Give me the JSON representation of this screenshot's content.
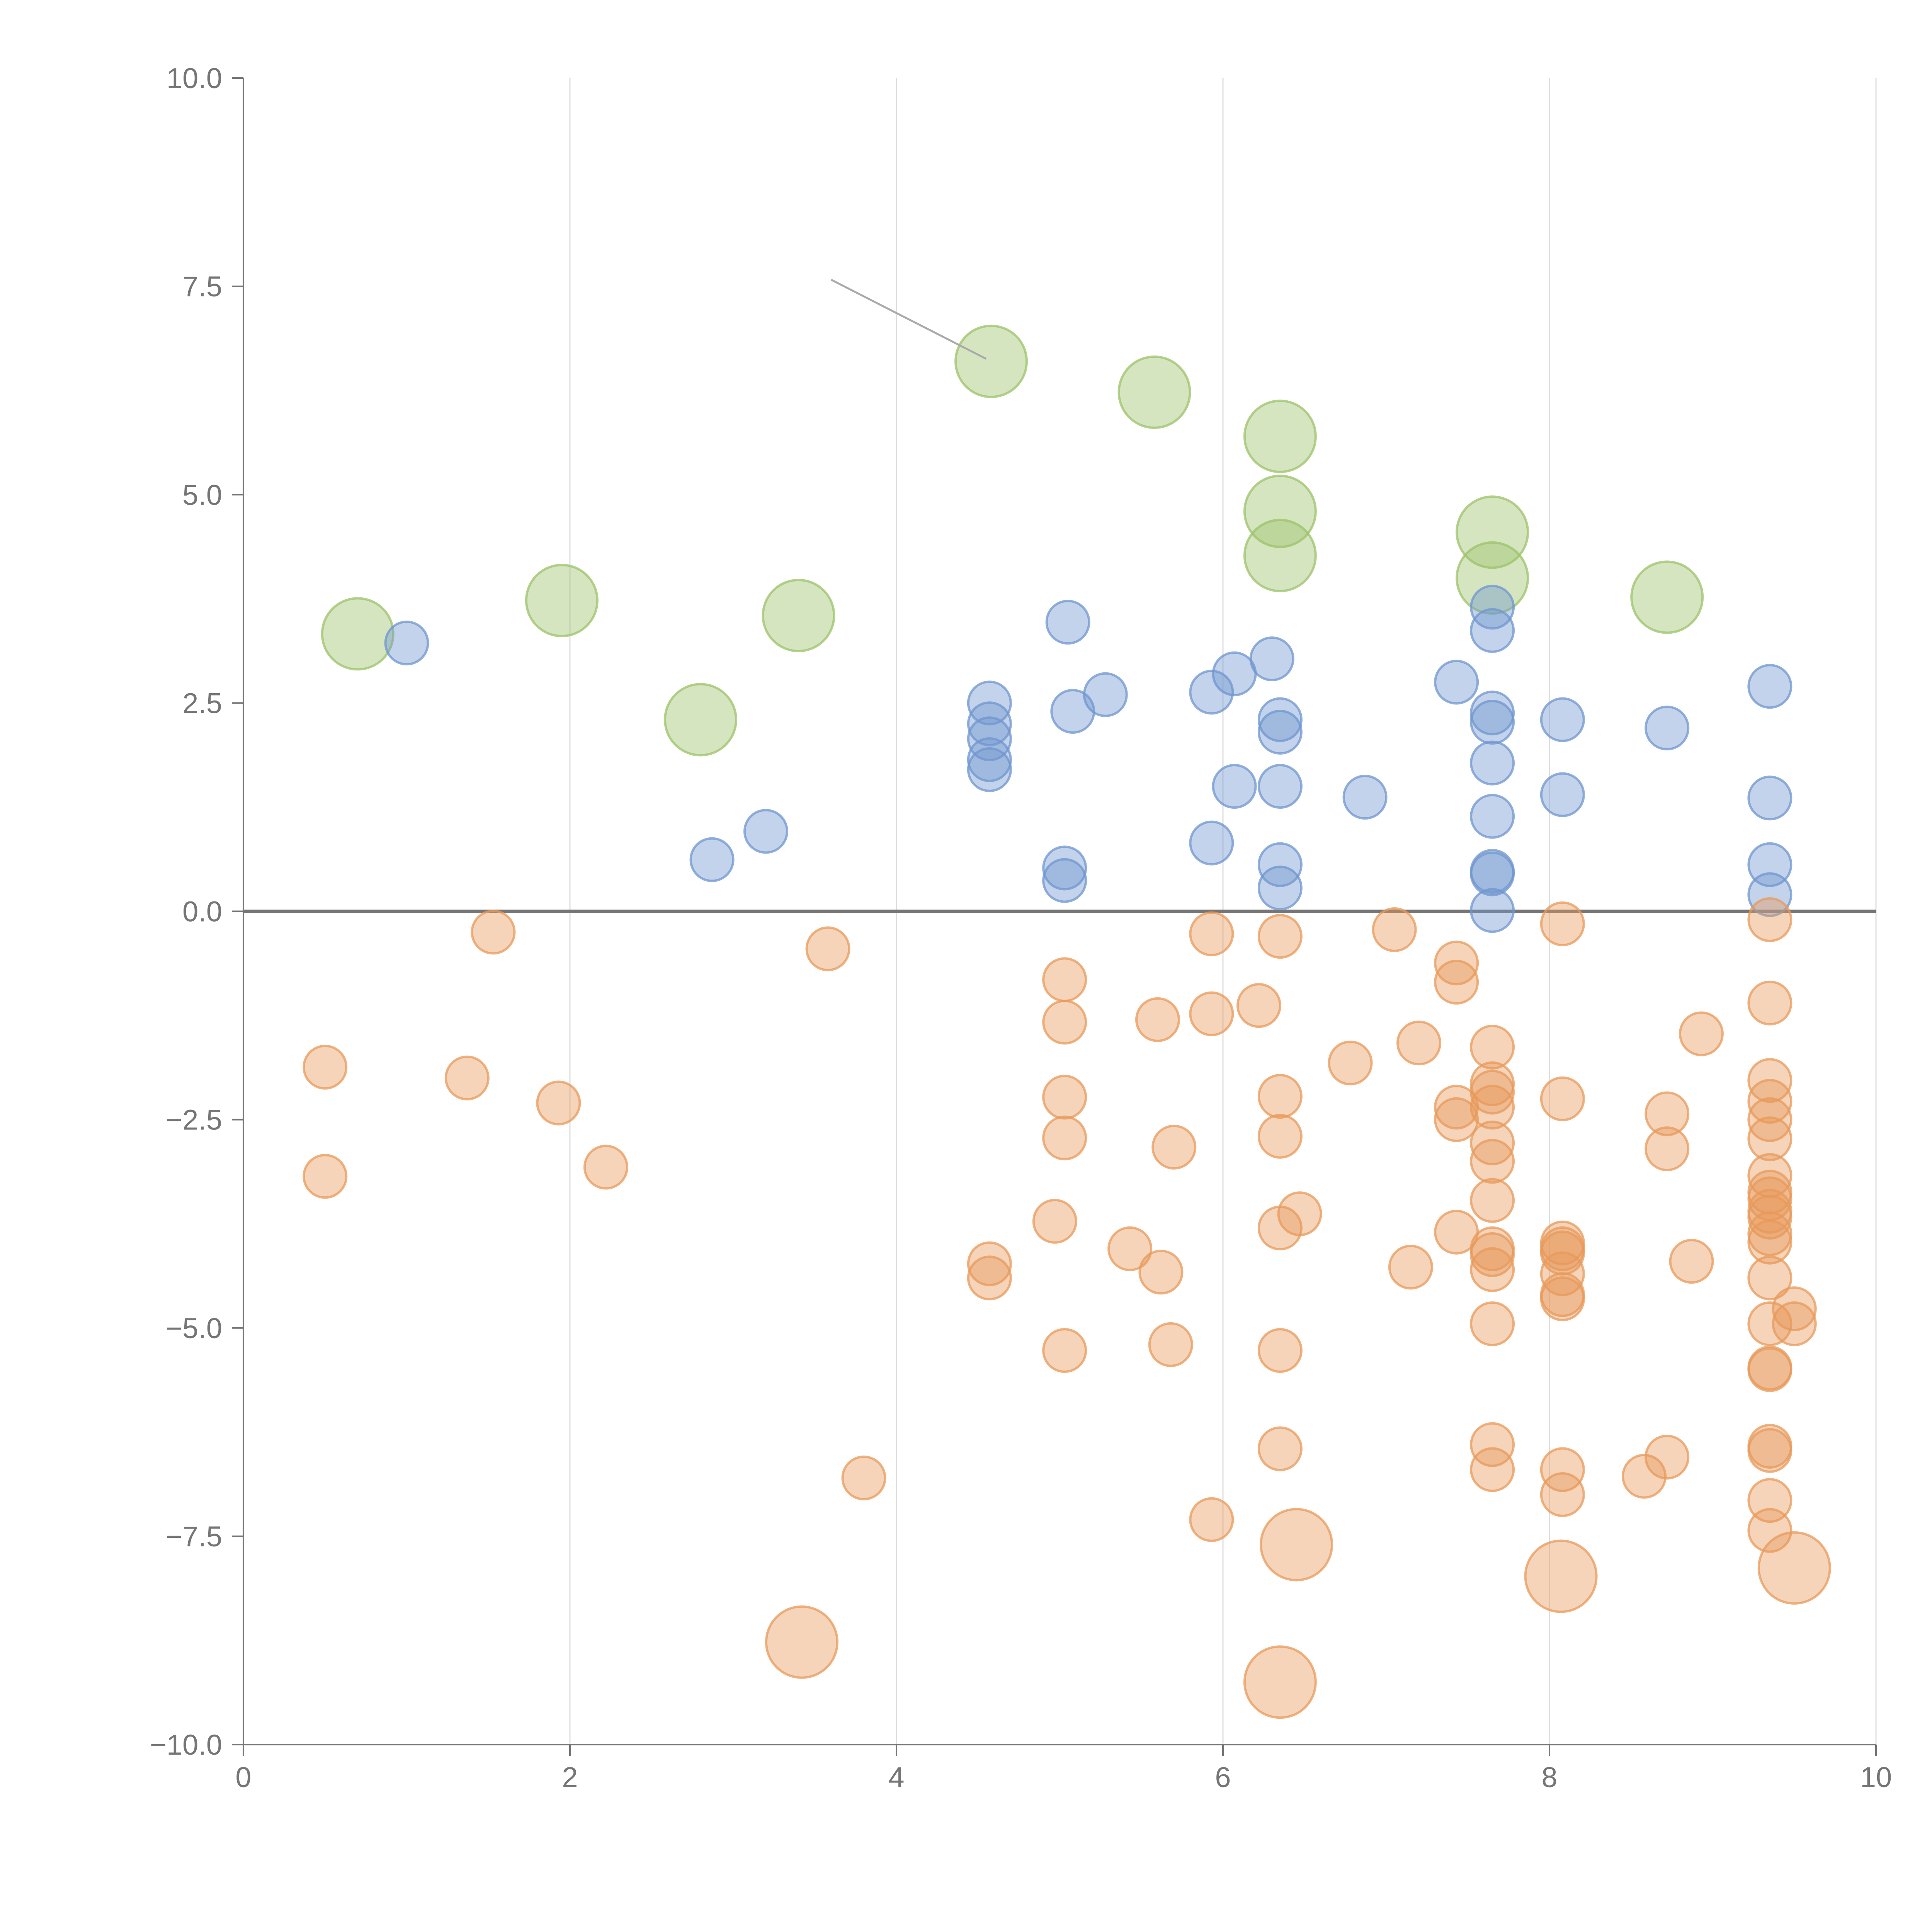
{
  "chart_data": {
    "type": "scatter",
    "title": "",
    "xlabel": "",
    "ylabel": "",
    "xlim": [
      0,
      10
    ],
    "ylim": [
      -10,
      10
    ],
    "x_ticks": [
      0,
      2,
      4,
      6,
      8,
      10
    ],
    "y_ticks": [
      -10,
      -7.5,
      -5,
      -2.5,
      0,
      2.5,
      5,
      7.5,
      10
    ],
    "x_tick_labels": [
      "0",
      "2",
      "4",
      "6",
      "8",
      "10"
    ],
    "y_tick_labels": [
      "−10.0",
      "−7.5",
      "−5.0",
      "−2.5",
      "0.0",
      "2.5",
      "5.0",
      "7.5",
      "10.0"
    ],
    "vertical_grid": true,
    "zero_line": true,
    "colors": {
      "green": "#9cc26a",
      "blue": "#6f96cf",
      "orange": "#e8995a",
      "grid": "#dcdcdc",
      "axis": "#757575",
      "zero_line": "#757575"
    },
    "series": [
      {
        "name": "green",
        "color": "#9cc26a",
        "size": "large",
        "points": [
          [
            0.7,
            3.33
          ],
          [
            1.95,
            3.73
          ],
          [
            2.8,
            2.3
          ],
          [
            3.4,
            3.55
          ],
          [
            4.58,
            6.6
          ],
          [
            5.58,
            6.23
          ],
          [
            6.35,
            5.7
          ],
          [
            6.35,
            4.8
          ],
          [
            6.35,
            4.27
          ],
          [
            7.65,
            4.55
          ],
          [
            7.65,
            4.0
          ],
          [
            8.72,
            3.77
          ]
        ]
      },
      {
        "name": "blue",
        "color": "#6f96cf",
        "size": "small",
        "points": [
          [
            1.0,
            3.22
          ],
          [
            2.87,
            0.62
          ],
          [
            3.2,
            0.96
          ],
          [
            4.57,
            2.5
          ],
          [
            4.57,
            2.25
          ],
          [
            4.57,
            2.07
          ],
          [
            4.57,
            1.82
          ],
          [
            4.57,
            1.7
          ],
          [
            5.03,
            0.52
          ],
          [
            5.03,
            0.37
          ],
          [
            5.05,
            3.47
          ],
          [
            5.08,
            2.4
          ],
          [
            5.28,
            2.6
          ],
          [
            5.93,
            2.63
          ],
          [
            5.93,
            0.82
          ],
          [
            6.07,
            2.85
          ],
          [
            6.07,
            1.5
          ],
          [
            6.3,
            3.03
          ],
          [
            6.35,
            2.3
          ],
          [
            6.35,
            2.15
          ],
          [
            6.35,
            1.5
          ],
          [
            6.35,
            0.56
          ],
          [
            6.35,
            0.28
          ],
          [
            6.87,
            1.37
          ],
          [
            7.43,
            2.75
          ],
          [
            7.65,
            3.65
          ],
          [
            7.65,
            3.37
          ],
          [
            7.65,
            2.38
          ],
          [
            7.65,
            2.27
          ],
          [
            7.65,
            1.78
          ],
          [
            7.65,
            1.14
          ],
          [
            7.65,
            0.48
          ],
          [
            7.65,
            0.45
          ],
          [
            7.65,
            0.01
          ],
          [
            8.08,
            2.3
          ],
          [
            8.08,
            1.4
          ],
          [
            8.72,
            2.2
          ],
          [
            9.35,
            2.7
          ],
          [
            9.35,
            1.36
          ],
          [
            9.35,
            0.56
          ],
          [
            9.35,
            0.2
          ]
        ]
      },
      {
        "name": "orange",
        "color": "#e8995a",
        "size": "mixed",
        "points": [
          [
            0.5,
            -1.87,
            0
          ],
          [
            0.5,
            -3.18,
            0
          ],
          [
            1.37,
            -2.0,
            0
          ],
          [
            1.53,
            -0.25,
            0
          ],
          [
            1.93,
            -2.3,
            0
          ],
          [
            2.22,
            -3.07,
            0
          ],
          [
            3.42,
            -8.77,
            1
          ],
          [
            3.58,
            -0.45,
            0
          ],
          [
            3.8,
            -6.8,
            0
          ],
          [
            4.57,
            -4.23,
            0
          ],
          [
            4.57,
            -4.4,
            0
          ],
          [
            4.97,
            -3.72,
            0
          ],
          [
            5.03,
            -0.82,
            0
          ],
          [
            5.03,
            -1.33,
            0
          ],
          [
            5.03,
            -2.23,
            0
          ],
          [
            5.03,
            -2.72,
            0
          ],
          [
            5.03,
            -5.27,
            0
          ],
          [
            5.43,
            -4.05,
            0
          ],
          [
            5.6,
            -1.3,
            0
          ],
          [
            5.62,
            -4.33,
            0
          ],
          [
            5.68,
            -5.2,
            0
          ],
          [
            5.7,
            -2.83,
            0
          ],
          [
            5.93,
            -0.27,
            0
          ],
          [
            5.93,
            -1.23,
            0
          ],
          [
            5.93,
            -7.3,
            0
          ],
          [
            6.22,
            -1.13,
            0
          ],
          [
            6.35,
            -0.3,
            0
          ],
          [
            6.35,
            -2.22,
            0
          ],
          [
            6.35,
            -2.7,
            0
          ],
          [
            6.35,
            -3.8,
            0
          ],
          [
            6.35,
            -5.27,
            0
          ],
          [
            6.35,
            -6.45,
            0
          ],
          [
            6.35,
            -9.25,
            1
          ],
          [
            6.47,
            -3.63,
            0
          ],
          [
            6.45,
            -7.6,
            1
          ],
          [
            6.78,
            -1.82,
            0
          ],
          [
            7.05,
            -0.22,
            0
          ],
          [
            7.15,
            -4.27,
            0
          ],
          [
            7.2,
            -1.58,
            0
          ],
          [
            7.43,
            -0.62,
            0
          ],
          [
            7.43,
            -0.85,
            0
          ],
          [
            7.43,
            -2.35,
            0
          ],
          [
            7.43,
            -2.5,
            0
          ],
          [
            7.43,
            -3.85,
            0
          ],
          [
            7.65,
            -1.63,
            0
          ],
          [
            7.65,
            -2.07,
            0
          ],
          [
            7.65,
            -2.17,
            0
          ],
          [
            7.65,
            -2.35,
            0
          ],
          [
            7.65,
            -2.78,
            0
          ],
          [
            7.65,
            -3.0,
            0
          ],
          [
            7.65,
            -3.47,
            0
          ],
          [
            7.65,
            -4.05,
            0
          ],
          [
            7.65,
            -4.12,
            0
          ],
          [
            7.65,
            -4.3,
            0
          ],
          [
            7.65,
            -4.95,
            0
          ],
          [
            7.65,
            -6.4,
            0
          ],
          [
            7.65,
            -6.7,
            0
          ],
          [
            8.08,
            -0.15,
            0
          ],
          [
            8.08,
            -2.25,
            0
          ],
          [
            8.08,
            -3.98,
            0
          ],
          [
            8.08,
            -4.05,
            0
          ],
          [
            8.08,
            -4.1,
            0
          ],
          [
            8.08,
            -4.35,
            0
          ],
          [
            8.08,
            -4.6,
            0
          ],
          [
            8.08,
            -4.65,
            0
          ],
          [
            8.08,
            -6.7,
            0
          ],
          [
            8.08,
            -7.0,
            0
          ],
          [
            8.07,
            -7.98,
            1
          ],
          [
            8.58,
            -6.78,
            0
          ],
          [
            8.72,
            -2.43,
            0
          ],
          [
            8.72,
            -2.85,
            0
          ],
          [
            8.72,
            -6.55,
            0
          ],
          [
            8.87,
            -4.2,
            0
          ],
          [
            8.93,
            -1.47,
            0
          ],
          [
            9.35,
            -0.1,
            0
          ],
          [
            9.35,
            -1.1,
            0
          ],
          [
            9.35,
            -2.03,
            0
          ],
          [
            9.35,
            -2.28,
            0
          ],
          [
            9.35,
            -2.5,
            0
          ],
          [
            9.35,
            -2.73,
            0
          ],
          [
            9.35,
            -3.17,
            0
          ],
          [
            9.35,
            -3.37,
            0
          ],
          [
            9.35,
            -3.45,
            0
          ],
          [
            9.35,
            -3.6,
            0
          ],
          [
            9.35,
            -3.67,
            0
          ],
          [
            9.35,
            -3.87,
            0
          ],
          [
            9.35,
            -3.97,
            0
          ],
          [
            9.35,
            -4.4,
            0
          ],
          [
            9.35,
            -4.95,
            0
          ],
          [
            9.35,
            -5.48,
            0
          ],
          [
            9.35,
            -5.5,
            0
          ],
          [
            9.35,
            -6.42,
            0
          ],
          [
            9.35,
            -6.47,
            0
          ],
          [
            9.35,
            -7.07,
            0
          ],
          [
            9.35,
            -7.43,
            0
          ],
          [
            9.5,
            -4.77,
            0
          ],
          [
            9.5,
            -4.95,
            0
          ],
          [
            9.5,
            -7.88,
            1
          ]
        ]
      }
    ],
    "annotations": [
      {
        "type": "leader_line",
        "from": [
          3.6,
          7.58
        ],
        "to": [
          4.55,
          6.63
        ]
      }
    ]
  }
}
